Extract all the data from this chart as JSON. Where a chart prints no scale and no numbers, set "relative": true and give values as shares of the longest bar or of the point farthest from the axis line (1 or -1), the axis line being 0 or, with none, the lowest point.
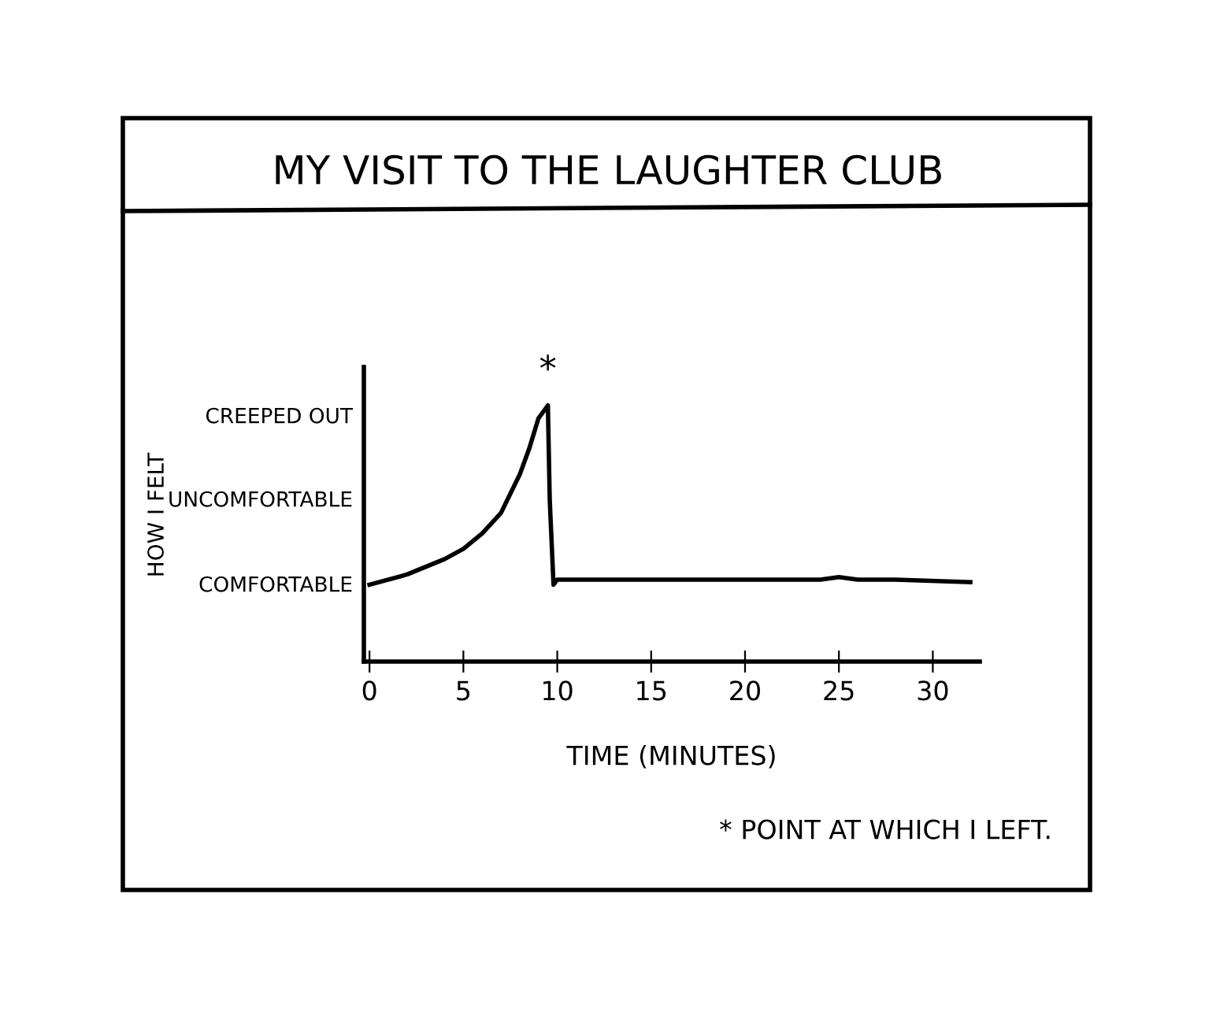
{
  "chart_data": {
    "type": "line",
    "title": "MY VISIT TO THE LAUGHTER CLUB",
    "xlabel": "TIME (MINUTES)",
    "relative": true,
    "x": [
      0,
      2,
      4,
      5,
      6,
      7,
      8,
      8.5,
      9,
      9.5,
      9.6,
      9.8,
      10,
      11,
      15,
      20,
      24,
      25,
      26,
      28,
      32
    ],
    "series": [
      {
        "color": "#000000",
        "values": [
          0.3,
          0.34,
          0.4,
          0.44,
          0.5,
          0.58,
          0.73,
          0.83,
          0.95,
          1.0,
          0.63,
          0.3,
          0.32,
          0.32,
          0.32,
          0.32,
          0.32,
          0.33,
          0.32,
          0.32,
          0.31
        ]
      }
    ],
    "xlim": [
      -0.3,
      32.5
    ],
    "xticks": [
      0,
      5,
      10,
      15,
      20,
      25,
      30
    ],
    "grid": false,
    "legend": false,
    "marker": "none",
    "line_style": "solid",
    "annotations": [
      "COMFORTABLE",
      "UNCOMFORTABLE",
      "CREEPED OUT",
      "HOW I FELT",
      {
        "text": "*",
        "x": 9.5,
        "y": 1.0
      },
      "* POINT AT WHICH I LEFT."
    ]
  }
}
